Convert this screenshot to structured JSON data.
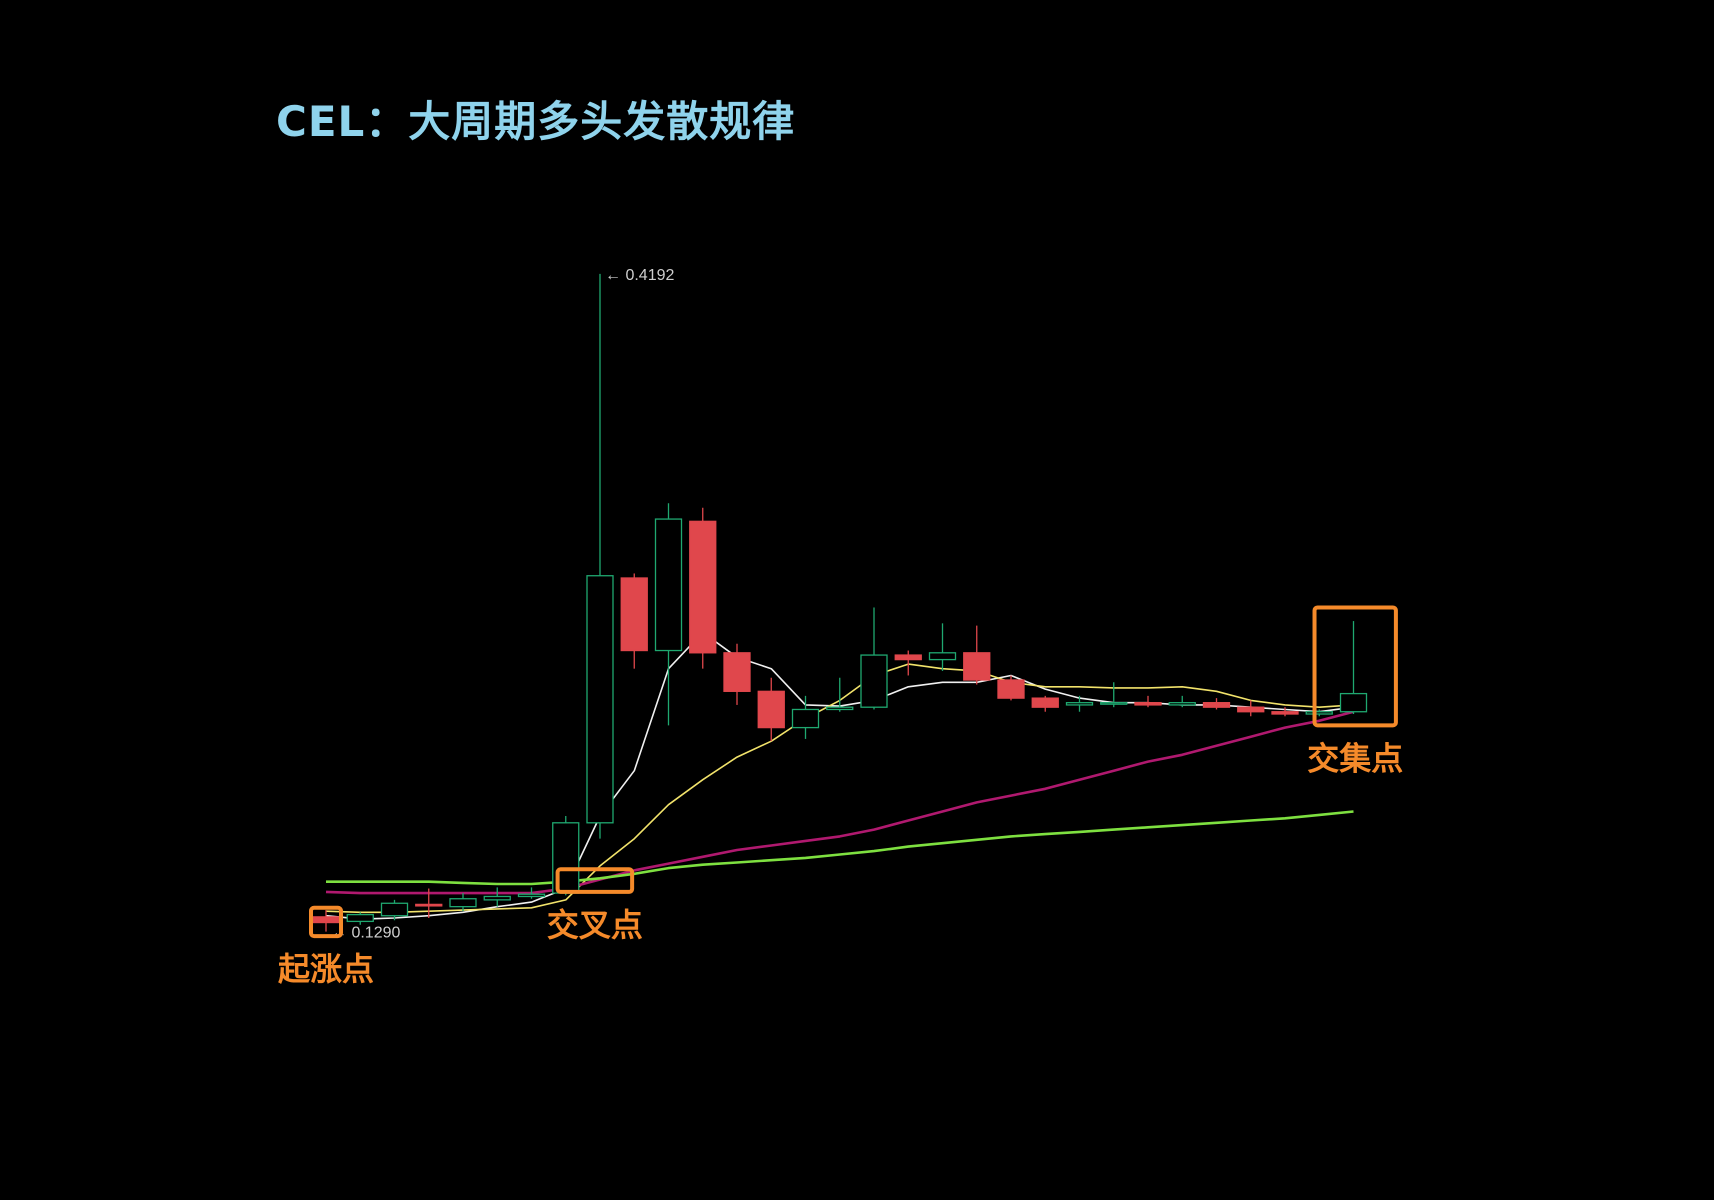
{
  "title": "CEL：大周期多头发散规律",
  "chart_data": {
    "type": "candlestick",
    "title": "CEL：大周期多头发散规律",
    "colors": {
      "up": "#1fa870",
      "down": "#e0474c",
      "ma_white": "#f0f0f0",
      "ma_yellow": "#f2e36b",
      "ma_purple": "#b0196f",
      "ma_green": "#7ee040",
      "callout": "#f58a2a"
    },
    "ylim": [
      0.09,
      0.45
    ],
    "candles": [
      {
        "o": 0.1355,
        "h": 0.1385,
        "l": 0.129,
        "c": 0.133
      },
      {
        "o": 0.1335,
        "h": 0.1375,
        "l": 0.132,
        "c": 0.1365
      },
      {
        "o": 0.136,
        "h": 0.143,
        "l": 0.134,
        "c": 0.1415
      },
      {
        "o": 0.141,
        "h": 0.148,
        "l": 0.135,
        "c": 0.1405
      },
      {
        "o": 0.14,
        "h": 0.146,
        "l": 0.138,
        "c": 0.1435
      },
      {
        "o": 0.143,
        "h": 0.1485,
        "l": 0.14,
        "c": 0.1445
      },
      {
        "o": 0.1445,
        "h": 0.1485,
        "l": 0.1435,
        "c": 0.1455
      },
      {
        "o": 0.146,
        "h": 0.18,
        "l": 0.145,
        "c": 0.177
      },
      {
        "o": 0.177,
        "h": 0.4192,
        "l": 0.17,
        "c": 0.286
      },
      {
        "o": 0.285,
        "h": 0.287,
        "l": 0.245,
        "c": 0.253
      },
      {
        "o": 0.253,
        "h": 0.318,
        "l": 0.22,
        "c": 0.311
      },
      {
        "o": 0.31,
        "h": 0.316,
        "l": 0.245,
        "c": 0.252
      },
      {
        "o": 0.252,
        "h": 0.256,
        "l": 0.229,
        "c": 0.235
      },
      {
        "o": 0.235,
        "h": 0.241,
        "l": 0.213,
        "c": 0.219
      },
      {
        "o": 0.219,
        "h": 0.233,
        "l": 0.214,
        "c": 0.227
      },
      {
        "o": 0.227,
        "h": 0.241,
        "l": 0.226,
        "c": 0.228
      },
      {
        "o": 0.228,
        "h": 0.272,
        "l": 0.227,
        "c": 0.251
      },
      {
        "o": 0.251,
        "h": 0.253,
        "l": 0.242,
        "c": 0.249
      },
      {
        "o": 0.249,
        "h": 0.265,
        "l": 0.244,
        "c": 0.252
      },
      {
        "o": 0.252,
        "h": 0.264,
        "l": 0.238,
        "c": 0.24
      },
      {
        "o": 0.24,
        "h": 0.242,
        "l": 0.231,
        "c": 0.232
      },
      {
        "o": 0.232,
        "h": 0.233,
        "l": 0.226,
        "c": 0.228
      },
      {
        "o": 0.229,
        "h": 0.233,
        "l": 0.226,
        "c": 0.23
      },
      {
        "o": 0.23,
        "h": 0.239,
        "l": 0.228,
        "c": 0.23
      },
      {
        "o": 0.23,
        "h": 0.233,
        "l": 0.228,
        "c": 0.229
      },
      {
        "o": 0.229,
        "h": 0.233,
        "l": 0.228,
        "c": 0.23
      },
      {
        "o": 0.23,
        "h": 0.232,
        "l": 0.227,
        "c": 0.228
      },
      {
        "o": 0.228,
        "h": 0.231,
        "l": 0.224,
        "c": 0.226
      },
      {
        "o": 0.226,
        "h": 0.228,
        "l": 0.224,
        "c": 0.225
      },
      {
        "o": 0.225,
        "h": 0.227,
        "l": 0.224,
        "c": 0.226
      },
      {
        "o": 0.226,
        "h": 0.266,
        "l": 0.225,
        "c": 0.234
      }
    ],
    "moving_averages": [
      {
        "color": "#f0f0f0",
        "values": [
          0.136,
          0.1345,
          0.135,
          0.136,
          0.1375,
          0.14,
          0.142,
          0.148,
          0.18,
          0.2,
          0.245,
          0.261,
          0.25,
          0.245,
          0.229,
          0.2285,
          0.231,
          0.237,
          0.239,
          0.239,
          0.242,
          0.236,
          0.232,
          0.23,
          0.23,
          0.229,
          0.229,
          0.228,
          0.227,
          0.226,
          0.228
        ]
      },
      {
        "color": "#f2e36b",
        "values": [
          0.138,
          0.1375,
          0.1375,
          0.138,
          0.1385,
          0.139,
          0.1395,
          0.143,
          0.158,
          0.17,
          0.185,
          0.196,
          0.206,
          0.213,
          0.223,
          0.231,
          0.242,
          0.247,
          0.245,
          0.244,
          0.239,
          0.237,
          0.237,
          0.2365,
          0.2365,
          0.237,
          0.235,
          0.231,
          0.229,
          0.228,
          0.229
        ]
      },
      {
        "color": "#b0196f",
        "values": [
          0.1465,
          0.146,
          0.146,
          0.146,
          0.146,
          0.146,
          0.146,
          0.148,
          0.152,
          0.156,
          0.159,
          0.162,
          0.165,
          0.167,
          0.169,
          0.171,
          0.174,
          0.178,
          0.182,
          0.186,
          0.189,
          0.192,
          0.196,
          0.2,
          0.204,
          0.207,
          0.211,
          0.215,
          0.219,
          0.222,
          0.226
        ]
      },
      {
        "color": "#7ee040",
        "values": [
          0.151,
          0.151,
          0.151,
          0.151,
          0.1505,
          0.15,
          0.15,
          0.151,
          0.1525,
          0.1545,
          0.157,
          0.1585,
          0.1595,
          0.1605,
          0.1615,
          0.163,
          0.1645,
          0.1665,
          0.168,
          0.1695,
          0.171,
          0.172,
          0.173,
          0.174,
          0.175,
          0.176,
          0.177,
          0.178,
          0.179,
          0.1805,
          0.182
        ]
      }
    ],
    "price_labels": [
      {
        "text": "← 0.4192",
        "index": 8,
        "price": 0.4192
      },
      {
        "text": "← 0.1290",
        "index": 0,
        "price": 0.129
      }
    ],
    "callouts": [
      {
        "label": "起涨点",
        "index_from": 0,
        "index_to": 0,
        "price_low": 0.127,
        "price_high": 0.1395
      },
      {
        "label": "交叉点",
        "index_from": 7.2,
        "index_to": 8.5,
        "price_low": 0.1465,
        "price_high": 0.1565
      },
      {
        "label": "交集点",
        "index_from": 29.3,
        "index_to": 30.8,
        "price_low": 0.22,
        "price_high": 0.272
      }
    ],
    "grid": false
  }
}
